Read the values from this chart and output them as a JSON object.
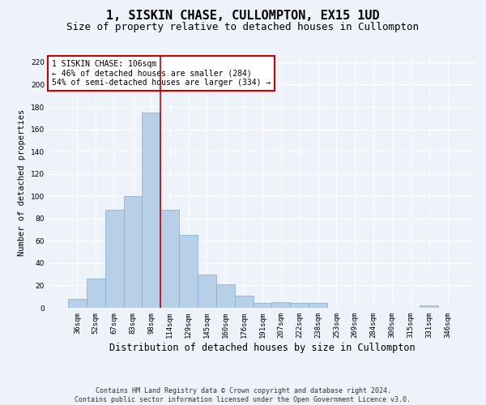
{
  "title": "1, SISKIN CHASE, CULLOMPTON, EX15 1UD",
  "subtitle": "Size of property relative to detached houses in Cullompton",
  "xlabel": "Distribution of detached houses by size in Cullompton",
  "ylabel": "Number of detached properties",
  "categories": [
    "36sqm",
    "52sqm",
    "67sqm",
    "83sqm",
    "98sqm",
    "114sqm",
    "129sqm",
    "145sqm",
    "160sqm",
    "176sqm",
    "191sqm",
    "207sqm",
    "222sqm",
    "238sqm",
    "253sqm",
    "269sqm",
    "284sqm",
    "300sqm",
    "315sqm",
    "331sqm",
    "346sqm"
  ],
  "values": [
    8,
    26,
    88,
    100,
    175,
    88,
    65,
    30,
    21,
    11,
    4,
    5,
    4,
    4,
    0,
    0,
    0,
    0,
    0,
    2,
    0
  ],
  "bar_color": "#b8cfe8",
  "bar_edge_color": "#7aadd4",
  "background_color": "#eef2fb",
  "grid_color": "#ffffff",
  "annotation_text": "1 SISKIN CHASE: 106sqm\n← 46% of detached houses are smaller (284)\n54% of semi-detached houses are larger (334) →",
  "annotation_box_color": "#ffffff",
  "annotation_box_edge_color": "#cc0000",
  "red_line_x": 4.5,
  "ylim": [
    0,
    225
  ],
  "yticks": [
    0,
    20,
    40,
    60,
    80,
    100,
    120,
    140,
    160,
    180,
    200,
    220
  ],
  "footer_line1": "Contains HM Land Registry data © Crown copyright and database right 2024.",
  "footer_line2": "Contains public sector information licensed under the Open Government Licence v3.0.",
  "title_fontsize": 11,
  "subtitle_fontsize": 9,
  "xlabel_fontsize": 8.5,
  "ylabel_fontsize": 7.5,
  "tick_fontsize": 6.5,
  "footer_fontsize": 6,
  "annotation_fontsize": 7
}
